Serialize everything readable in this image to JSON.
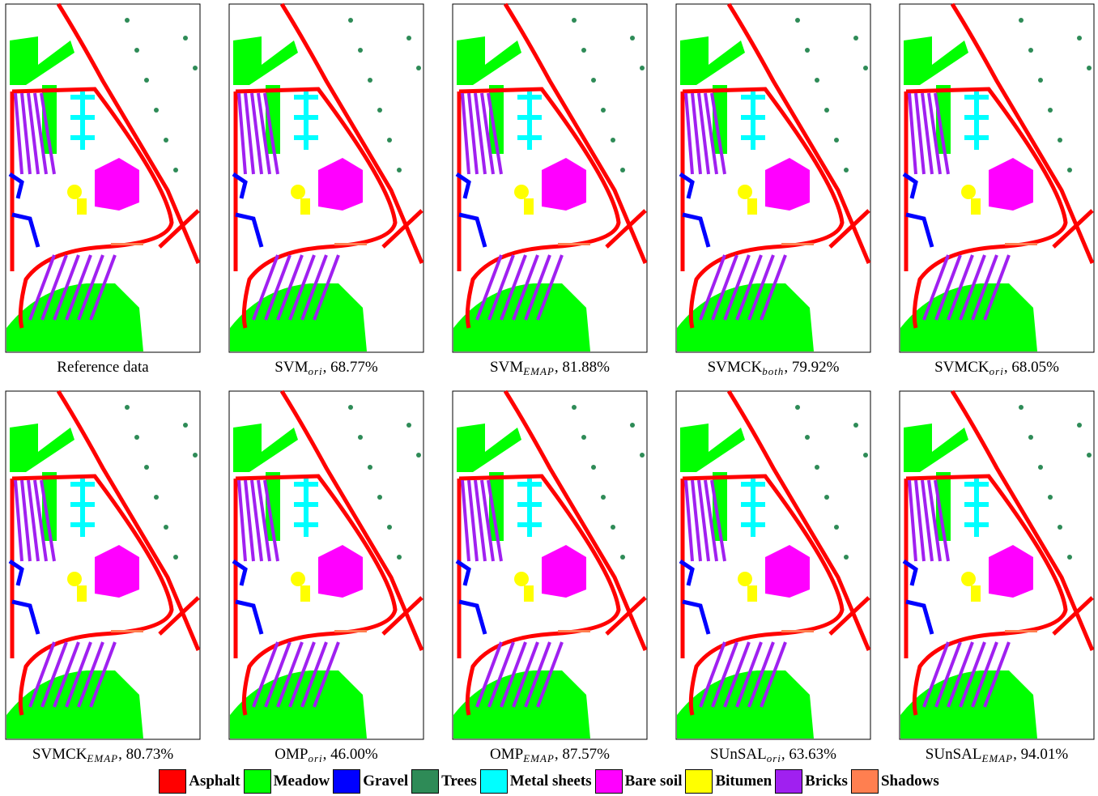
{
  "panels": [
    {
      "name": "Reference data",
      "sub": null,
      "rest": null
    },
    {
      "name": "SVM",
      "sub": "ori",
      "rest": ", 68.77%"
    },
    {
      "name": "SVM",
      "sub": "EMAP",
      "rest": ", 81.88%"
    },
    {
      "name": "SVMCK",
      "sub": "both",
      "rest": ", 79.92%"
    },
    {
      "name": "SVMCK",
      "sub": "ori",
      "rest": ", 68.05%"
    },
    {
      "name": "SVMCK",
      "sub": "EMAP",
      "rest": ", 80.73%"
    },
    {
      "name": "OMP",
      "sub": "ori",
      "rest": ", 46.00%"
    },
    {
      "name": "OMP",
      "sub": "EMAP",
      "rest": ", 87.57%"
    },
    {
      "name": "SUnSAL",
      "sub": "ori",
      "rest": ", 63.63%"
    },
    {
      "name": "SUnSAL",
      "sub": "EMAP",
      "rest": ", 94.01%"
    }
  ],
  "legend": [
    {
      "label": "Asphalt",
      "color": "#ff0000"
    },
    {
      "label": "Meadow",
      "color": "#00ff00"
    },
    {
      "label": "Gravel",
      "color": "#0000ff"
    },
    {
      "label": "Trees",
      "color": "#2e8b57"
    },
    {
      "label": "Metal sheets",
      "color": "#00ffff"
    },
    {
      "label": "Bare soil",
      "color": "#ff00ff"
    },
    {
      "label": "Bitumen",
      "color": "#ffff00"
    },
    {
      "label": "Bricks",
      "color": "#a020f0"
    },
    {
      "label": "Shadows",
      "color": "#ff7f50"
    }
  ]
}
